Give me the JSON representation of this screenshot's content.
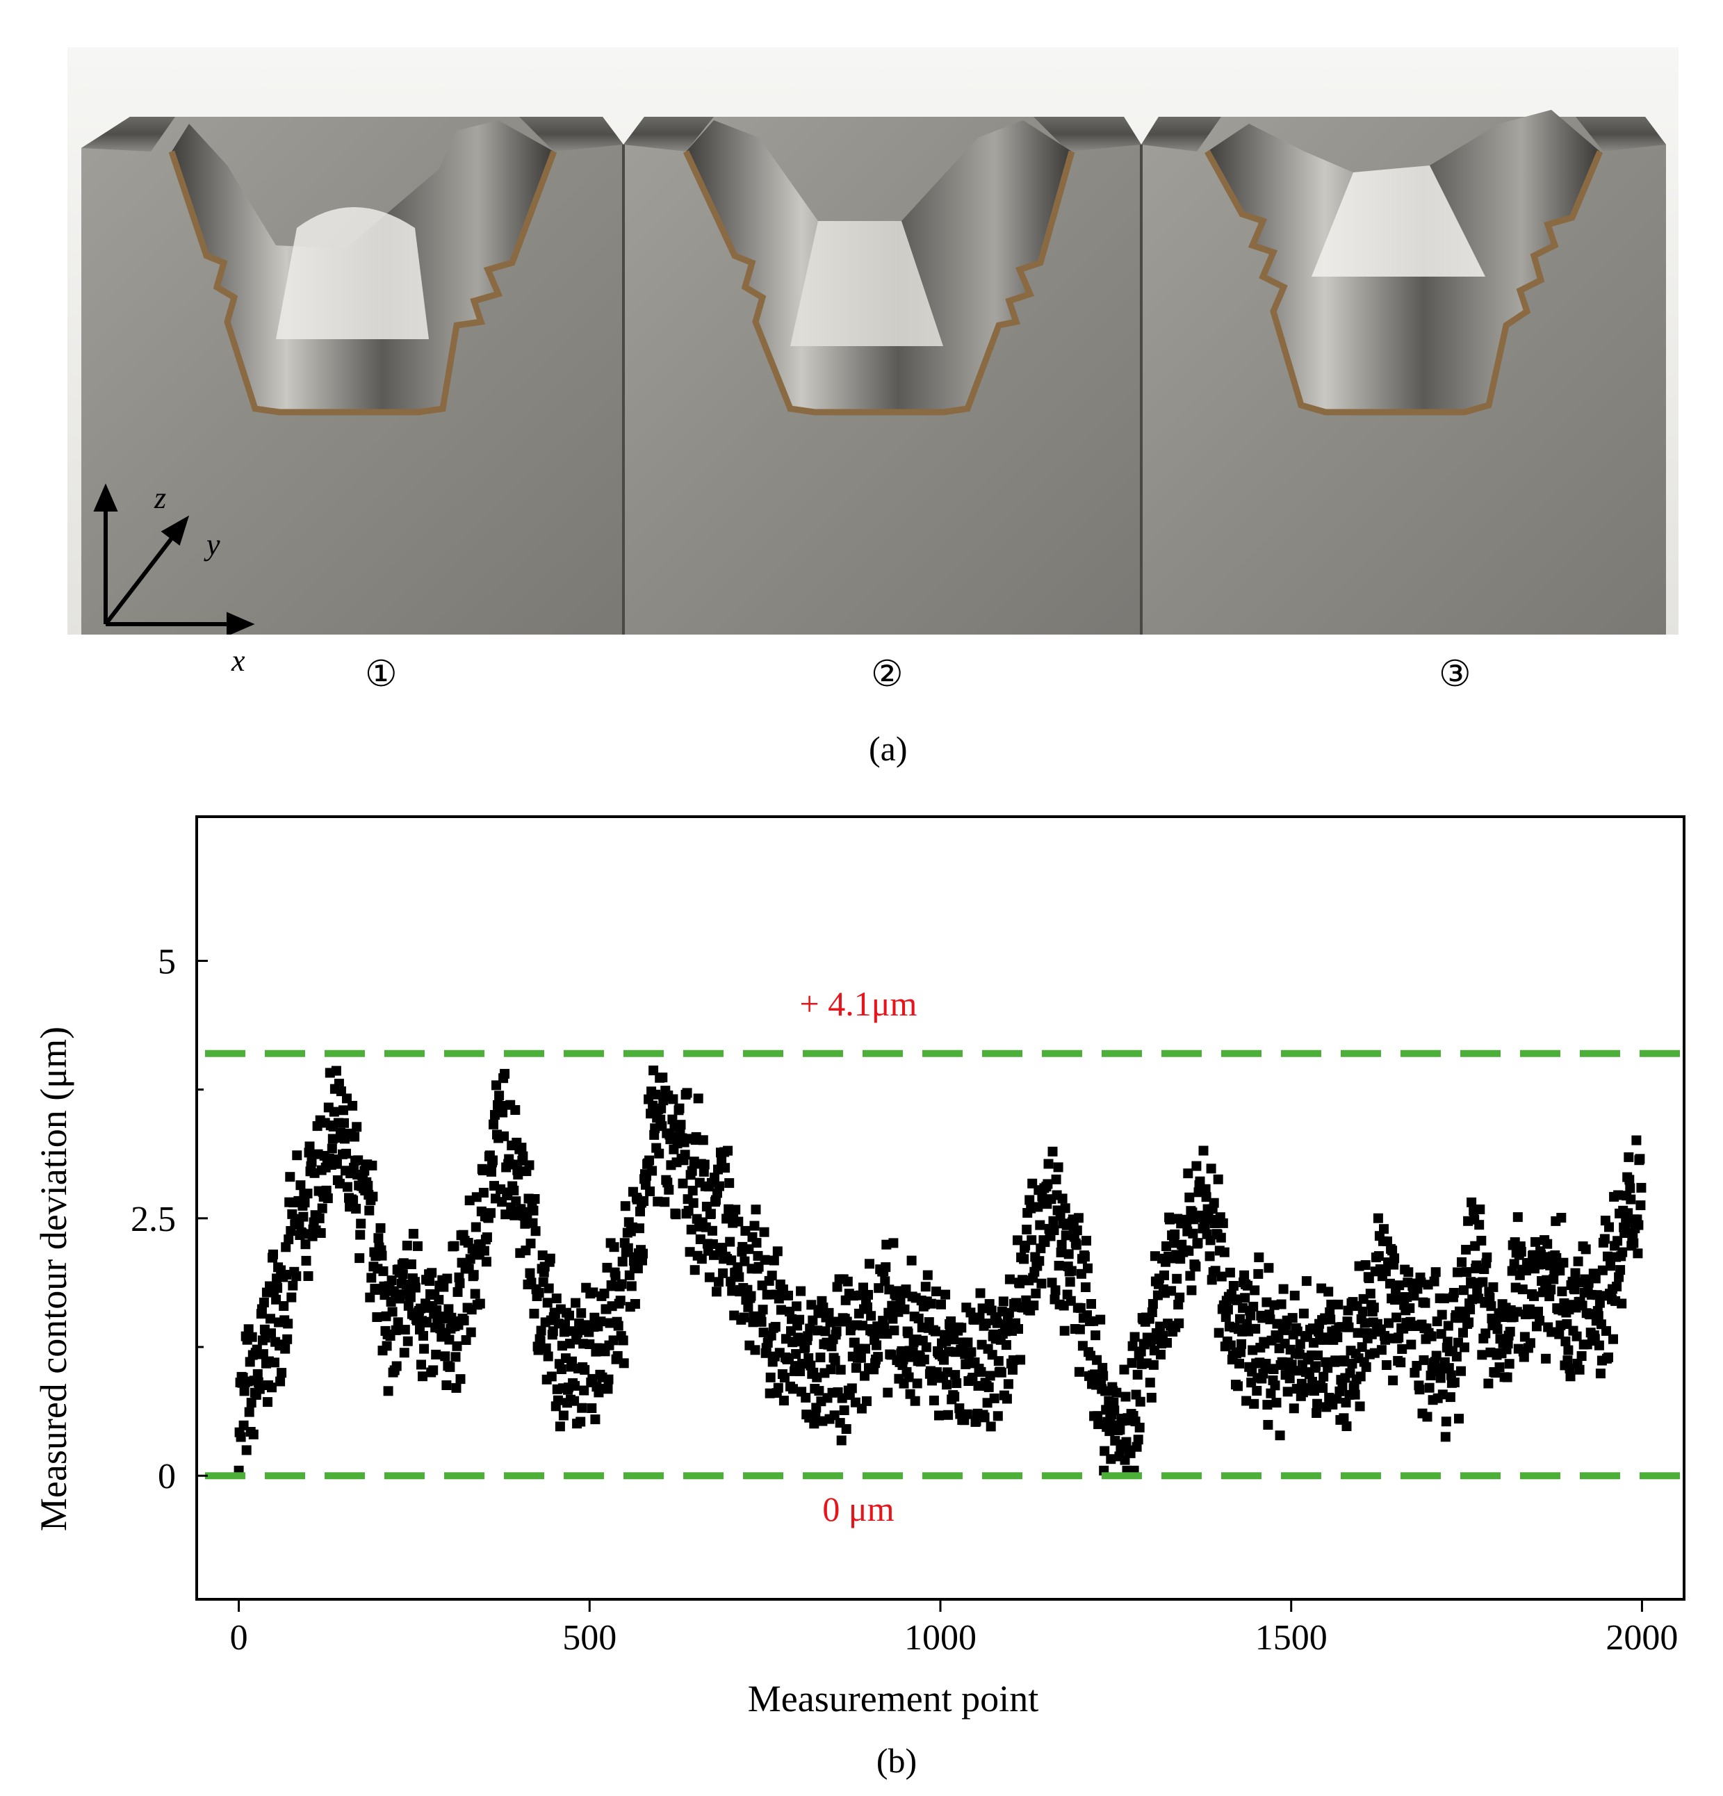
{
  "panel_a": {
    "caption": "(a)",
    "axes": {
      "z": "z",
      "y": "y",
      "x": "x"
    },
    "specimens": [
      "①",
      "②",
      "③"
    ]
  },
  "panel_b": {
    "caption": "(b)"
  },
  "colors": {
    "reference_line": "#4caf37",
    "annotation": "#e8141c",
    "points": "#000000"
  },
  "chart_data": {
    "type": "scatter",
    "xlabel": "Measurement point",
    "ylabel": "Measured contour deviation (μm)",
    "xlim": [
      -60,
      2060
    ],
    "ylim": [
      -1.2,
      6.4
    ],
    "xticks": [
      0,
      500,
      1000,
      1500,
      2000
    ],
    "xtick_labels": [
      "0",
      "500",
      "1000",
      "1500",
      "2000"
    ],
    "yticks": [
      0,
      2.5,
      5
    ],
    "ytick_labels": [
      "0",
      "2.5",
      "5"
    ],
    "y_minor_ticks": [
      1.25,
      3.75
    ],
    "grid": false,
    "reference_lines": [
      {
        "y": 4.1,
        "label": "+ 4.1μm"
      },
      {
        "y": 0,
        "label": "0 μm"
      }
    ],
    "profile": {
      "x": [
        0,
        20,
        40,
        70,
        100,
        130,
        160,
        190,
        220,
        250,
        280,
        310,
        340,
        370,
        400,
        430,
        470,
        500,
        530,
        560,
        590,
        630,
        670,
        710,
        750,
        790,
        830,
        870,
        910,
        950,
        1000,
        1050,
        1100,
        1130,
        1160,
        1200,
        1240,
        1270,
        1300,
        1340,
        1380,
        1420,
        1460,
        1500,
        1540,
        1580,
        1620,
        1660,
        1700,
        1730,
        1760,
        1790,
        1820,
        1860,
        1900,
        1940,
        1970,
        2000
      ],
      "y": [
        0.6,
        0.8,
        1.3,
        2.0,
        2.6,
        3.2,
        3.0,
        2.3,
        1.4,
        1.8,
        1.3,
        1.6,
        2.1,
        3.3,
        3.0,
        1.7,
        1.0,
        1.2,
        1.5,
        2.0,
        3.4,
        3.1,
        2.6,
        2.2,
        1.6,
        1.2,
        1.0,
        1.2,
        1.5,
        1.4,
        1.2,
        1.0,
        1.4,
        2.4,
        2.4,
        1.8,
        0.5,
        0.7,
        1.3,
        2.0,
        2.6,
        1.5,
        1.3,
        1.1,
        1.2,
        1.1,
        1.8,
        1.6,
        1.2,
        1.0,
        2.3,
        1.2,
        1.8,
        2.0,
        1.5,
        1.7,
        2.2,
        3.0
      ],
      "spread": 0.55,
      "n_points": 2000,
      "marker": "square"
    }
  }
}
